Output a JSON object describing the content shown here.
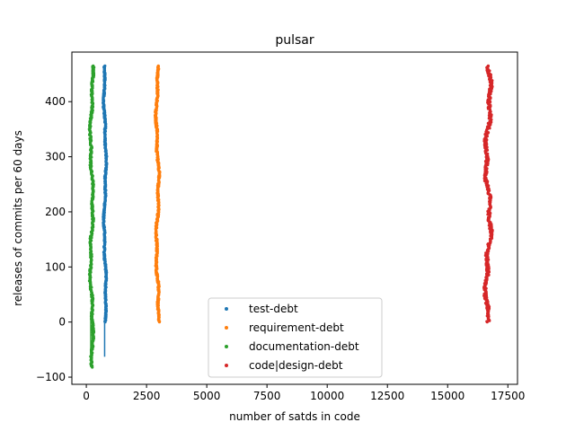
{
  "chart_data": {
    "type": "scatter",
    "title": "pulsar",
    "xlabel": "number of satds in code",
    "ylabel": "releases of commits per 60 days",
    "xlim": [
      -600,
      17900
    ],
    "ylim": [
      -113,
      490
    ],
    "xticks": [
      0,
      2500,
      5000,
      7500,
      10000,
      12500,
      15000,
      17500
    ],
    "yticks": [
      -100,
      0,
      100,
      200,
      300,
      400
    ],
    "grid": false,
    "legend_position": "lower-center",
    "series": [
      {
        "name": "test-debt",
        "color": "#1f77b4",
        "x_range": [
          690,
          860
        ],
        "y_range": [
          0,
          465
        ],
        "line": {
          "x": 760,
          "y_range": [
            -63,
            12
          ]
        }
      },
      {
        "name": "requirement-debt",
        "color": "#ff7f0e",
        "x_range": [
          2850,
          3060
        ],
        "y_range": [
          0,
          465
        ],
        "line": null
      },
      {
        "name": "documentation-debt",
        "color": "#2ca02c",
        "x_range": [
          110,
          330
        ],
        "y_range": [
          -82,
          465
        ],
        "line": {
          "x": 185,
          "y_range": [
            -82,
            20
          ]
        }
      },
      {
        "name": "code|design-debt",
        "color": "#d62728",
        "x_range": [
          16480,
          16880
        ],
        "y_range": [
          0,
          465
        ],
        "line": null
      }
    ]
  }
}
